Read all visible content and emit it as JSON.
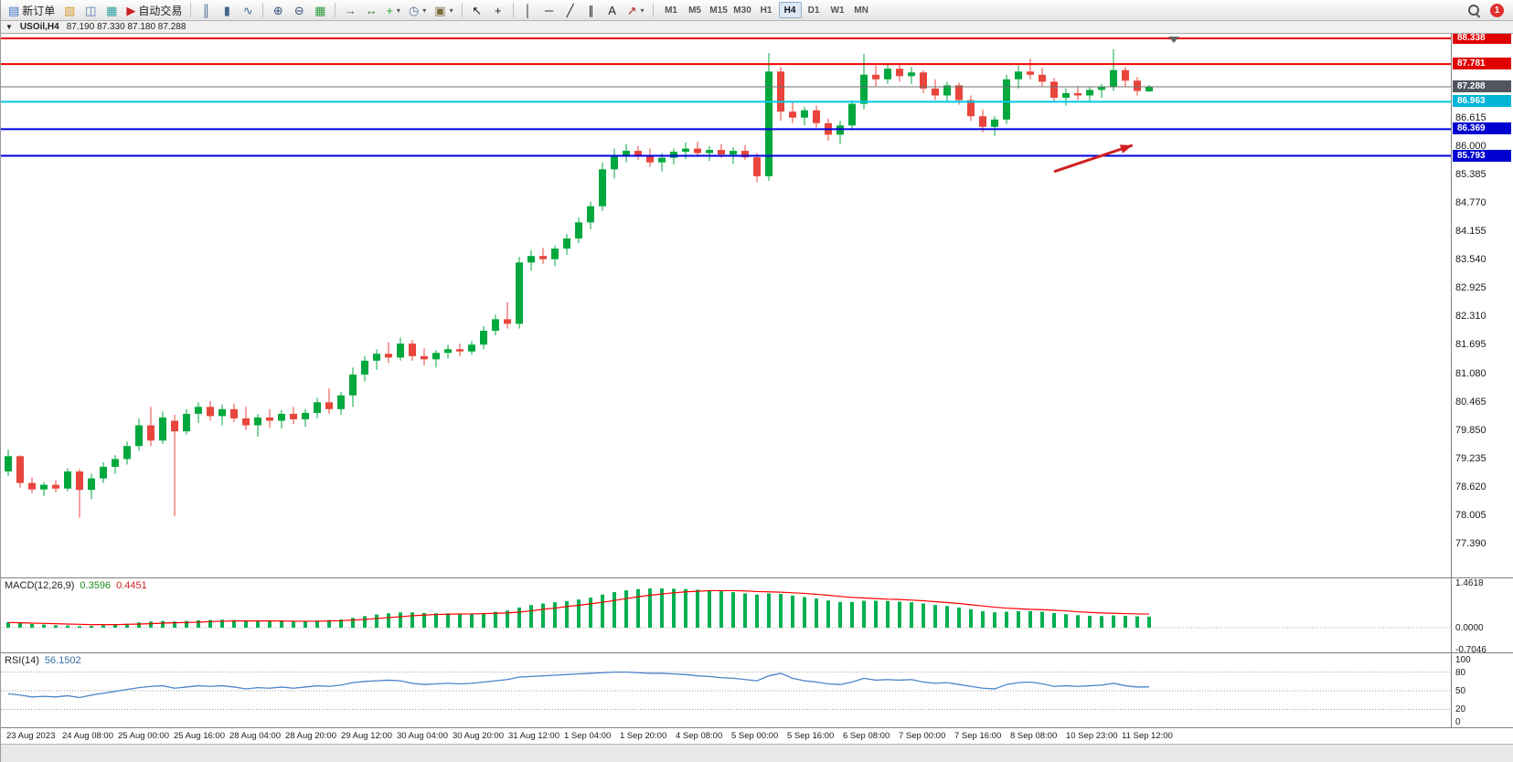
{
  "toolbar": {
    "items": [
      {
        "name": "new-order-button",
        "icon": "new-order-icon",
        "glyph": "▤",
        "color": "#3c78c8",
        "label": "新订单"
      },
      {
        "name": "market-watch-button",
        "icon": "market-watch-icon",
        "glyph": "▧",
        "color": "#d89a2e"
      },
      {
        "name": "navigator-button",
        "icon": "navigator-icon",
        "glyph": "◫",
        "color": "#4878b0"
      },
      {
        "name": "terminal-button",
        "icon": "terminal-icon",
        "glyph": "▦",
        "color": "#30a0a0"
      },
      {
        "name": "auto-trading-button",
        "icon": "auto-trading-icon",
        "glyph": "▶",
        "color": "#cc2222",
        "label": "自动交易"
      },
      {
        "type": "sep"
      },
      {
        "name": "bar-chart-button",
        "icon": "bar-chart-icon",
        "glyph": "║",
        "color": "#446688"
      },
      {
        "name": "candlestick-chart-button",
        "icon": "candlestick-chart-icon",
        "glyph": "▮",
        "color": "#446688"
      },
      {
        "name": "line-chart-button",
        "icon": "line-chart-icon",
        "glyph": "∿",
        "color": "#446688"
      },
      {
        "type": "sep"
      },
      {
        "name": "zoom-in-button",
        "icon": "zoom-in-icon",
        "glyph": "⊕",
        "color": "#335577"
      },
      {
        "name": "zoom-out-button",
        "icon": "zoom-out-icon",
        "glyph": "⊖",
        "color": "#335577"
      },
      {
        "name": "tile-windows-button",
        "icon": "tile-windows-icon",
        "glyph": "▦",
        "color": "#2e9e40"
      },
      {
        "type": "sep"
      },
      {
        "name": "auto-scroll-button",
        "icon": "auto-scroll-icon",
        "glyph": "→",
        "color": "#447744"
      },
      {
        "name": "chart-shift-button",
        "icon": "chart-shift-icon",
        "glyph": "↔",
        "color": "#447744"
      },
      {
        "name": "indicators-button",
        "icon": "indicators-icon",
        "glyph": "+",
        "color": "#22aa22",
        "caret": true
      },
      {
        "name": "periods-button",
        "icon": "clock-icon",
        "glyph": "◷",
        "color": "#557799",
        "caret": true
      },
      {
        "name": "templates-button",
        "icon": "templates-icon",
        "glyph": "▣",
        "color": "#7a6a3a",
        "caret": true
      },
      {
        "type": "sep"
      },
      {
        "name": "cursor-button",
        "icon": "cursor-icon",
        "glyph": "↖",
        "color": "#222222"
      },
      {
        "name": "crosshair-button",
        "icon": "crosshair-icon",
        "glyph": "+",
        "color": "#222222"
      },
      {
        "type": "sep"
      },
      {
        "name": "vertical-line-button",
        "icon": "vertical-line-icon",
        "glyph": "│",
        "color": "#222222"
      },
      {
        "name": "horizontal-line-button",
        "icon": "horizontal-line-icon",
        "glyph": "─",
        "color": "#222222"
      },
      {
        "name": "trendline-button",
        "icon": "trendline-icon",
        "glyph": "╱",
        "color": "#222222"
      },
      {
        "name": "channel-button",
        "icon": "channel-icon",
        "glyph": "∥",
        "color": "#222222"
      },
      {
        "name": "text-button",
        "icon": "text-icon",
        "glyph": "A",
        "color": "#222222"
      },
      {
        "name": "arrows-button",
        "icon": "arrow-objects-icon",
        "glyph": "↗",
        "color": "#aa2222",
        "caret": true
      },
      {
        "type": "sep"
      },
      {
        "type": "timeframes"
      }
    ],
    "timeframes": [
      "M1",
      "M5",
      "M15",
      "M30",
      "H1",
      "H4",
      "D1",
      "W1",
      "MN"
    ],
    "active_timeframe": "H4",
    "notification_count": "1"
  },
  "chart": {
    "title": "USOil,H4",
    "ohlc_text": "87.190 87.330 87.180 87.288"
  },
  "colors": {
    "bull": "#00a83e",
    "bear": "#e8453c",
    "macd_hist": "#00b050",
    "macd_signal": "#ff0000",
    "rsi_line": "#4a86c8",
    "arrow": "#d02020"
  },
  "chart_data": {
    "type": "candlestick",
    "symbol": "USOil",
    "period": "H4",
    "current": {
      "open": 87.19,
      "high": 87.33,
      "low": 87.18,
      "close": 87.288
    },
    "candles": [
      [
        78.95,
        79.42,
        78.85,
        79.28
      ],
      [
        79.28,
        79.3,
        78.6,
        78.7
      ],
      [
        78.7,
        78.82,
        78.48,
        78.56
      ],
      [
        78.56,
        78.72,
        78.42,
        78.66
      ],
      [
        78.66,
        78.76,
        78.5,
        78.58
      ],
      [
        78.58,
        79.02,
        78.52,
        78.95
      ],
      [
        78.95,
        79.0,
        77.95,
        78.55
      ],
      [
        78.55,
        78.9,
        78.35,
        78.8
      ],
      [
        78.8,
        79.15,
        78.7,
        79.05
      ],
      [
        79.05,
        79.3,
        78.9,
        79.22
      ],
      [
        79.22,
        79.6,
        79.1,
        79.5
      ],
      [
        79.5,
        80.1,
        79.4,
        79.95
      ],
      [
        79.95,
        80.35,
        79.5,
        79.62
      ],
      [
        79.62,
        80.25,
        79.55,
        80.12
      ],
      [
        80.05,
        80.18,
        77.98,
        79.82
      ],
      [
        79.82,
        80.3,
        79.75,
        80.2
      ],
      [
        80.2,
        80.45,
        80.0,
        80.35
      ],
      [
        80.35,
        80.48,
        80.05,
        80.15
      ],
      [
        80.15,
        80.4,
        79.95,
        80.3
      ],
      [
        80.3,
        80.42,
        80.02,
        80.1
      ],
      [
        80.1,
        80.35,
        79.85,
        79.95
      ],
      [
        79.95,
        80.2,
        79.7,
        80.12
      ],
      [
        80.12,
        80.3,
        79.9,
        80.05
      ],
      [
        80.05,
        80.28,
        79.88,
        80.2
      ],
      [
        80.2,
        80.35,
        79.98,
        80.08
      ],
      [
        80.08,
        80.3,
        79.92,
        80.22
      ],
      [
        80.22,
        80.55,
        80.1,
        80.45
      ],
      [
        80.45,
        80.75,
        80.2,
        80.3
      ],
      [
        80.3,
        80.68,
        80.18,
        80.6
      ],
      [
        80.6,
        81.2,
        80.35,
        81.05
      ],
      [
        81.05,
        81.45,
        80.9,
        81.35
      ],
      [
        81.35,
        81.6,
        81.15,
        81.5
      ],
      [
        81.5,
        81.75,
        81.3,
        81.42
      ],
      [
        81.42,
        81.85,
        81.35,
        81.72
      ],
      [
        81.72,
        81.8,
        81.35,
        81.45
      ],
      [
        81.45,
        81.62,
        81.25,
        81.38
      ],
      [
        81.38,
        81.58,
        81.2,
        81.52
      ],
      [
        81.52,
        81.7,
        81.4,
        81.6
      ],
      [
        81.6,
        81.72,
        81.45,
        81.55
      ],
      [
        81.55,
        81.78,
        81.48,
        81.7
      ],
      [
        81.7,
        82.1,
        81.6,
        82.0
      ],
      [
        82.0,
        82.35,
        81.9,
        82.25
      ],
      [
        82.25,
        82.62,
        82.05,
        82.15
      ],
      [
        82.15,
        83.6,
        82.05,
        83.48
      ],
      [
        83.48,
        83.75,
        83.3,
        83.62
      ],
      [
        83.62,
        83.8,
        83.45,
        83.55
      ],
      [
        83.55,
        83.85,
        83.4,
        83.78
      ],
      [
        83.78,
        84.1,
        83.65,
        84.0
      ],
      [
        84.0,
        84.45,
        83.9,
        84.35
      ],
      [
        84.35,
        84.8,
        84.2,
        84.7
      ],
      [
        84.7,
        85.65,
        84.6,
        85.5
      ],
      [
        85.5,
        85.95,
        85.3,
        85.8
      ],
      [
        85.8,
        86.05,
        85.65,
        85.9
      ],
      [
        85.9,
        86.0,
        85.7,
        85.78
      ],
      [
        85.78,
        85.95,
        85.55,
        85.65
      ],
      [
        85.65,
        85.85,
        85.45,
        85.75
      ],
      [
        85.75,
        85.95,
        85.6,
        85.88
      ],
      [
        85.88,
        86.08,
        85.72,
        85.95
      ],
      [
        85.95,
        86.1,
        85.8,
        85.85
      ],
      [
        85.85,
        86.0,
        85.68,
        85.92
      ],
      [
        85.92,
        86.05,
        85.75,
        85.82
      ],
      [
        85.82,
        85.98,
        85.62,
        85.9
      ],
      [
        85.9,
        86.02,
        85.7,
        85.76
      ],
      [
        85.76,
        85.85,
        85.22,
        85.35
      ],
      [
        85.35,
        88.02,
        85.25,
        87.62
      ],
      [
        87.62,
        87.72,
        86.55,
        86.75
      ],
      [
        86.75,
        86.95,
        86.5,
        86.62
      ],
      [
        86.62,
        86.85,
        86.45,
        86.78
      ],
      [
        86.78,
        86.88,
        86.4,
        86.5
      ],
      [
        86.5,
        86.6,
        86.12,
        86.25
      ],
      [
        86.25,
        86.55,
        86.05,
        86.45
      ],
      [
        86.45,
        87.0,
        86.35,
        86.92
      ],
      [
        86.92,
        88.0,
        86.8,
        87.55
      ],
      [
        87.55,
        87.75,
        87.3,
        87.45
      ],
      [
        87.45,
        87.8,
        87.35,
        87.68
      ],
      [
        87.68,
        87.78,
        87.4,
        87.52
      ],
      [
        87.52,
        87.72,
        87.35,
        87.6
      ],
      [
        87.6,
        87.65,
        87.15,
        87.25
      ],
      [
        87.25,
        87.45,
        87.0,
        87.1
      ],
      [
        87.1,
        87.4,
        86.95,
        87.32
      ],
      [
        87.32,
        87.38,
        86.9,
        87.0
      ],
      [
        87.0,
        87.1,
        86.55,
        86.65
      ],
      [
        86.65,
        86.8,
        86.3,
        86.42
      ],
      [
        86.42,
        86.65,
        86.22,
        86.58
      ],
      [
        86.58,
        87.55,
        86.48,
        87.45
      ],
      [
        87.45,
        87.75,
        87.25,
        87.62
      ],
      [
        87.62,
        87.9,
        87.45,
        87.55
      ],
      [
        87.55,
        87.7,
        87.3,
        87.4
      ],
      [
        87.4,
        87.48,
        86.95,
        87.05
      ],
      [
        87.05,
        87.25,
        86.88,
        87.15
      ],
      [
        87.15,
        87.3,
        87.0,
        87.1
      ],
      [
        87.1,
        87.28,
        86.95,
        87.22
      ],
      [
        87.22,
        87.35,
        87.05,
        87.28
      ],
      [
        87.28,
        88.1,
        87.2,
        87.65
      ],
      [
        87.65,
        87.72,
        87.3,
        87.42
      ],
      [
        87.42,
        87.5,
        87.1,
        87.2
      ],
      [
        87.19,
        87.33,
        87.18,
        87.288
      ]
    ],
    "hlines": [
      {
        "price": 88.338,
        "color": "#f00000",
        "width": 2,
        "tag_bg": "#e00000"
      },
      {
        "price": 87.781,
        "color": "#f00000",
        "width": 2,
        "tag_bg": "#e00000"
      },
      {
        "price": 87.288,
        "color": "#707070",
        "width": 1,
        "tag_bg": "#50555f",
        "current": true
      },
      {
        "price": 86.963,
        "color": "#00c8e8",
        "width": 2,
        "tag_bg": "#00b4d8"
      },
      {
        "price": 86.369,
        "color": "#0000e0",
        "width": 2,
        "tag_bg": "#0000d0"
      },
      {
        "price": 85.793,
        "color": "#0000e0",
        "width": 2,
        "tag_bg": "#0000d0"
      }
    ],
    "y_axis_labels": [
      "86.615",
      "86.000",
      "85.385",
      "84.770",
      "84.155",
      "83.540",
      "82.925",
      "82.310",
      "81.695",
      "81.080",
      "80.465",
      "79.850",
      "79.235",
      "78.620",
      "78.005",
      "77.390"
    ],
    "x_labels": [
      "23 Aug 2023",
      "24 Aug 08:00",
      "25 Aug 00:00",
      "25 Aug 16:00",
      "28 Aug 04:00",
      "28 Aug 20:00",
      "29 Aug 12:00",
      "30 Aug 04:00",
      "30 Aug 20:00",
      "31 Aug 12:00",
      "1 Sep 04:00",
      "1 Sep 20:00",
      "4 Sep 08:00",
      "5 Sep 00:00",
      "5 Sep 16:00",
      "6 Sep 08:00",
      "7 Sep 00:00",
      "7 Sep 16:00",
      "8 Sep 08:00",
      "10 Sep 23:00",
      "11 Sep 12:00"
    ],
    "arrow_annotation": {
      "from": {
        "bar": 88,
        "price": 85.45
      },
      "to": {
        "bar": 94.6,
        "price": 86.02
      },
      "color": "#d02020"
    },
    "indicators": {
      "macd": {
        "name": "MACD(12,26,9)",
        "value_main": "0.3596",
        "value_signal": "0.4451",
        "scale": [
          {
            "label": "1.4618",
            "value": 1.4618
          },
          {
            "label": "0.0000",
            "value": 0
          },
          {
            "label": "-0.7046",
            "value": -0.7046
          }
        ],
        "range": [
          -0.7046,
          1.4618
        ],
        "histogram": [
          0.18,
          0.15,
          0.12,
          0.1,
          0.08,
          0.07,
          0.05,
          0.06,
          0.08,
          0.1,
          0.13,
          0.17,
          0.2,
          0.22,
          0.2,
          0.22,
          0.24,
          0.25,
          0.26,
          0.25,
          0.23,
          0.22,
          0.21,
          0.21,
          0.2,
          0.21,
          0.23,
          0.25,
          0.27,
          0.32,
          0.38,
          0.43,
          0.47,
          0.5,
          0.5,
          0.48,
          0.47,
          0.47,
          0.46,
          0.46,
          0.48,
          0.52,
          0.56,
          0.66,
          0.74,
          0.79,
          0.83,
          0.87,
          0.92,
          0.98,
          1.08,
          1.16,
          1.22,
          1.26,
          1.28,
          1.28,
          1.27,
          1.26,
          1.24,
          1.22,
          1.19,
          1.16,
          1.12,
          1.08,
          1.12,
          1.1,
          1.05,
          1.0,
          0.95,
          0.89,
          0.84,
          0.84,
          0.88,
          0.88,
          0.87,
          0.85,
          0.83,
          0.79,
          0.74,
          0.71,
          0.66,
          0.6,
          0.54,
          0.5,
          0.52,
          0.54,
          0.54,
          0.52,
          0.48,
          0.44,
          0.41,
          0.39,
          0.38,
          0.4,
          0.39,
          0.37,
          0.36
        ],
        "signal": [
          0.17,
          0.16,
          0.15,
          0.14,
          0.13,
          0.12,
          0.11,
          0.1,
          0.1,
          0.1,
          0.11,
          0.12,
          0.13,
          0.15,
          0.16,
          0.17,
          0.18,
          0.2,
          0.21,
          0.22,
          0.22,
          0.22,
          0.22,
          0.22,
          0.21,
          0.21,
          0.21,
          0.22,
          0.23,
          0.25,
          0.27,
          0.3,
          0.33,
          0.36,
          0.39,
          0.41,
          0.43,
          0.44,
          0.45,
          0.45,
          0.46,
          0.47,
          0.48,
          0.51,
          0.55,
          0.6,
          0.64,
          0.69,
          0.73,
          0.78,
          0.83,
          0.89,
          0.95,
          1.01,
          1.06,
          1.1,
          1.14,
          1.17,
          1.19,
          1.21,
          1.21,
          1.21,
          1.2,
          1.18,
          1.17,
          1.16,
          1.14,
          1.12,
          1.09,
          1.06,
          1.02,
          0.99,
          0.97,
          0.95,
          0.93,
          0.92,
          0.9,
          0.88,
          0.85,
          0.82,
          0.79,
          0.75,
          0.71,
          0.67,
          0.64,
          0.62,
          0.6,
          0.59,
          0.57,
          0.55,
          0.52,
          0.5,
          0.48,
          0.47,
          0.46,
          0.45,
          0.445
        ]
      },
      "rsi": {
        "name": "RSI(14)",
        "value": "56.1502",
        "levels": [
          80,
          50,
          20
        ],
        "scale": [
          100,
          80,
          50,
          20,
          0
        ],
        "range": [
          0,
          100
        ],
        "values": [
          45,
          43,
          40,
          41,
          40,
          42,
          39,
          43,
          46,
          49,
          52,
          55,
          57,
          58,
          54,
          56,
          58,
          57,
          58,
          56,
          53,
          55,
          54,
          56,
          54,
          56,
          58,
          57,
          59,
          63,
          65,
          66,
          67,
          66,
          62,
          60,
          61,
          62,
          61,
          62,
          64,
          66,
          68,
          72,
          73,
          74,
          75,
          76,
          77,
          78,
          79,
          80,
          80,
          79,
          78,
          78,
          77,
          76,
          74,
          73,
          71,
          70,
          68,
          66,
          74,
          78,
          70,
          66,
          64,
          61,
          60,
          64,
          70,
          67,
          68,
          67,
          68,
          64,
          62,
          63,
          60,
          57,
          54,
          53,
          60,
          63,
          64,
          61,
          57,
          58,
          57,
          58,
          59,
          62,
          58,
          56,
          56.15
        ]
      }
    }
  }
}
